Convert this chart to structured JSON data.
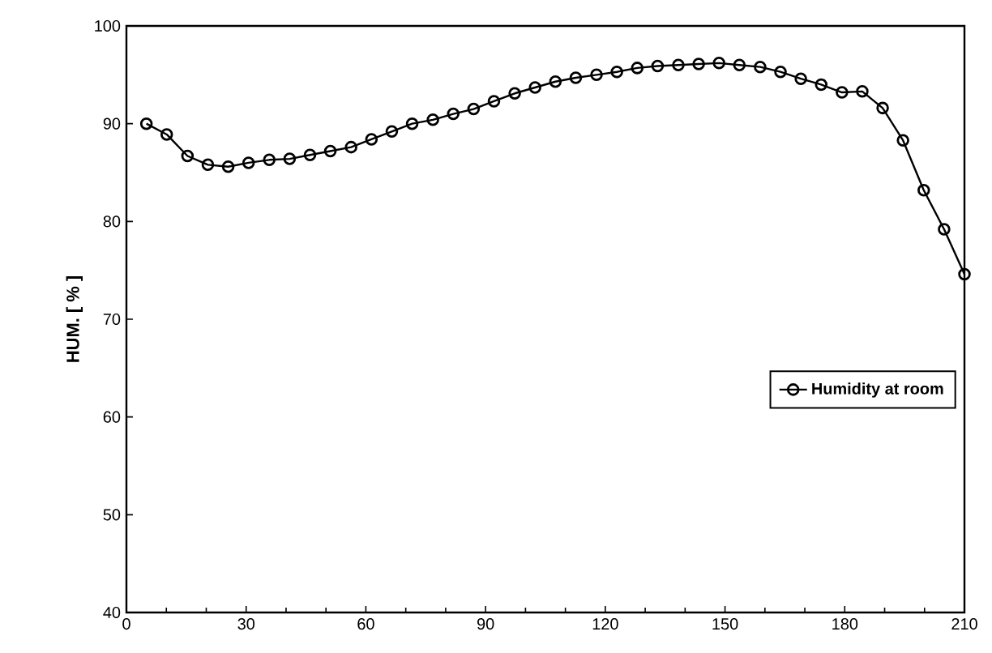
{
  "chart_data": {
    "type": "line",
    "ylabel": "HUM. [ % ]",
    "x": [
      5,
      10.1,
      15.3,
      20.4,
      25.5,
      30.6,
      35.8,
      40.9,
      46,
      51.1,
      56.3,
      61.4,
      66.5,
      71.6,
      76.8,
      81.9,
      87,
      92.1,
      97.3,
      102.4,
      107.5,
      112.6,
      117.8,
      122.9,
      128,
      133.1,
      138.3,
      143.4,
      148.5,
      153.6,
      158.8,
      163.9,
      169,
      174.1,
      179.3,
      184.4,
      189.5,
      194.6,
      199.8,
      204.9,
      210
    ],
    "series": [
      {
        "name": "Humidity at room",
        "color": "#000000",
        "values": [
          90,
          88.9,
          86.7,
          85.8,
          85.6,
          86,
          86.3,
          86.4,
          86.8,
          87.2,
          87.6,
          88.4,
          89.2,
          90,
          90.4,
          91,
          91.5,
          92.3,
          93.1,
          93.7,
          94.3,
          94.7,
          95,
          95.3,
          95.7,
          95.9,
          96,
          96.1,
          96.2,
          96,
          95.8,
          95.3,
          94.6,
          94,
          93.2,
          93.3,
          91.6,
          88.3,
          83.2,
          79.2,
          74.6
        ]
      }
    ],
    "xlim": [
      0,
      210
    ],
    "xticks": [
      0,
      30,
      60,
      90,
      120,
      150,
      180,
      210
    ],
    "ylim": [
      40,
      100
    ],
    "yticks": [
      40,
      50,
      60,
      70,
      80,
      90,
      100
    ],
    "marker": "circle",
    "line_style": "solid",
    "legend": "right",
    "grid": false
  }
}
